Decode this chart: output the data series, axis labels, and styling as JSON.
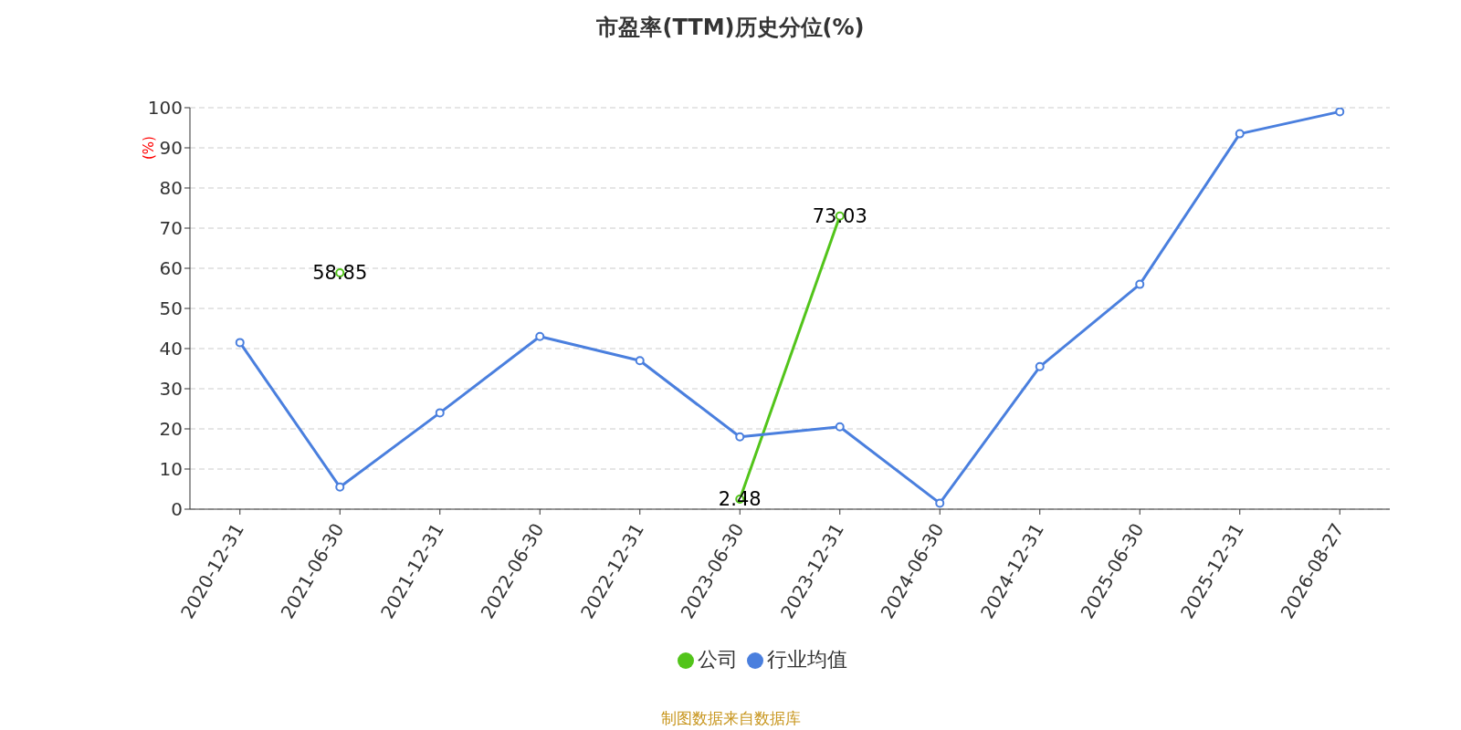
{
  "chart_data": {
    "type": "line",
    "title": "市盈率(TTM)历史分位(%)",
    "ylabel": "(%)",
    "categories": [
      "2020-12-31",
      "2021-06-30",
      "2021-12-31",
      "2022-06-30",
      "2022-12-31",
      "2023-06-30",
      "2023-12-31",
      "2024-06-30",
      "2024-12-31",
      "2025-06-30",
      "2025-12-31",
      "2026-08-27"
    ],
    "series": [
      {
        "name": "公司",
        "color": "#52c41a",
        "values": [
          null,
          58.85,
          null,
          null,
          null,
          2.48,
          73.03,
          null,
          null,
          null,
          null,
          null
        ],
        "value_labels": [
          null,
          "58.85",
          null,
          null,
          null,
          "2.48",
          "73.03",
          null,
          null,
          null,
          null,
          null
        ]
      },
      {
        "name": "行业均值",
        "color": "#4a7fde",
        "values": [
          41.5,
          5.5,
          24,
          43,
          37,
          18,
          20.5,
          1.5,
          35.5,
          56,
          93.5,
          99
        ]
      }
    ],
    "ylim": [
      0,
      100
    ],
    "yticks": [
      0,
      10,
      20,
      30,
      40,
      50,
      60,
      70,
      80,
      90,
      100
    ],
    "grid": "y",
    "legend": "bottom",
    "marker": "circle",
    "line_style": "solid",
    "annotations": [
      "制图数据来自数据库"
    ]
  }
}
